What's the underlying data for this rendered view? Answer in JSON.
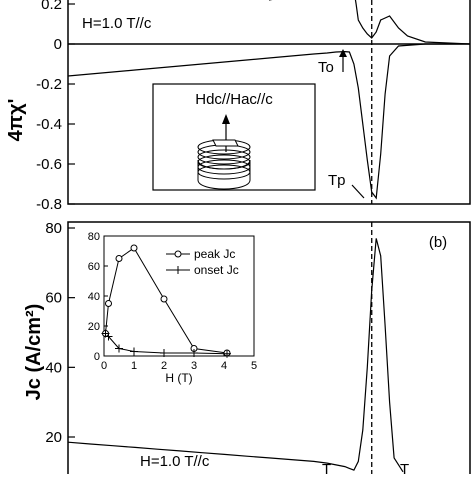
{
  "chart_data": [
    {
      "type": "line",
      "ylabel": "4πχ'",
      "ylim": [
        -0.8,
        0.28
      ],
      "yticks": [
        0.2,
        0,
        -0.2,
        -0.4,
        -0.6,
        -0.8
      ],
      "ytick_labels": [
        "0.2",
        "0",
        "-0.2",
        "-0.4",
        "-0.6",
        "-0.8"
      ],
      "field_label": "H=1.0 T//c",
      "inset_label": "Hdc//Hac//c",
      "annotations": [
        {
          "id": "To",
          "text": "To",
          "point": [
            63,
            -0.05
          ]
        },
        {
          "id": "Tp",
          "text": "Tp",
          "point": [
            68,
            -0.77
          ]
        }
      ],
      "series": [
        {
          "x": [
            0,
            5,
            10,
            15,
            20,
            25,
            30,
            35,
            40,
            45,
            50,
            55,
            58,
            60,
            62,
            63,
            64,
            65,
            66,
            67,
            68,
            69,
            70,
            71,
            72,
            74,
            80,
            90
          ],
          "y": [
            -0.16,
            -0.15,
            -0.14,
            -0.13,
            -0.12,
            -0.11,
            -0.1,
            -0.09,
            -0.08,
            -0.07,
            -0.06,
            -0.05,
            -0.045,
            -0.04,
            -0.038,
            -0.04,
            -0.1,
            -0.22,
            -0.4,
            -0.58,
            -0.74,
            -0.77,
            -0.55,
            -0.25,
            -0.06,
            -0.01,
            0.0,
            0.0
          ]
        },
        {
          "x": [
            45,
            50,
            55,
            60,
            63,
            64,
            64.5,
            65,
            66,
            67,
            68,
            69,
            70,
            72,
            74,
            76,
            80,
            85,
            90
          ],
          "y": [
            0.22,
            0.24,
            0.25,
            0.26,
            0.27,
            0.27,
            0.2,
            0.12,
            0.08,
            0.05,
            0.03,
            0.06,
            0.12,
            0.14,
            0.08,
            0.04,
            0.01,
            0.005,
            0.0
          ]
        }
      ],
      "vline_x": 68
    },
    {
      "type": "line",
      "ylabel": "Jc (A/cm²)",
      "ylim": [
        10,
        80
      ],
      "yticks": [
        20,
        40,
        60,
        80
      ],
      "ytick_labels": [
        "20",
        "40",
        "60",
        "80"
      ],
      "panel_label": "(b)",
      "field_label": "H=1.0 T//c",
      "annotations": [
        {
          "id": "T-left",
          "text": "T"
        },
        {
          "id": "T-right",
          "text": "T"
        }
      ],
      "series": [
        {
          "x": [
            0,
            5,
            10,
            15,
            20,
            25,
            30,
            35,
            40,
            45,
            50,
            55,
            58,
            60,
            62,
            63,
            64,
            65,
            66,
            67,
            68,
            69,
            70,
            71,
            72,
            73,
            75
          ],
          "y": [
            18.5,
            18.0,
            17.5,
            17.0,
            16.5,
            16.0,
            15.5,
            15.0,
            14.5,
            14.0,
            13.5,
            13.0,
            12.5,
            12.0,
            11.5,
            11.0,
            10.5,
            13.0,
            22.0,
            40.0,
            62.0,
            77.0,
            72.0,
            52.0,
            30.0,
            14.0,
            10.0
          ]
        }
      ],
      "vline_x": 68
    },
    {
      "type": "line",
      "xlabel": "H (T)",
      "xlim": [
        0,
        5
      ],
      "ylim": [
        0,
        80
      ],
      "xticks": [
        0,
        1,
        2,
        3,
        4,
        5
      ],
      "yticks": [
        0,
        20,
        40,
        60,
        80
      ],
      "series": [
        {
          "name": "peak Jc",
          "marker": "circle",
          "x": [
            0.05,
            0.15,
            0.5,
            1.0,
            2.0,
            3.0,
            4.1
          ],
          "y": [
            15,
            35,
            65,
            72,
            38,
            5,
            2
          ]
        },
        {
          "name": "onset Jc",
          "marker": "plus",
          "x": [
            0.05,
            0.15,
            0.5,
            1.0,
            2.0,
            3.0,
            4.1
          ],
          "y": [
            15,
            13,
            5,
            3,
            2,
            2,
            1.5
          ]
        }
      ]
    }
  ]
}
